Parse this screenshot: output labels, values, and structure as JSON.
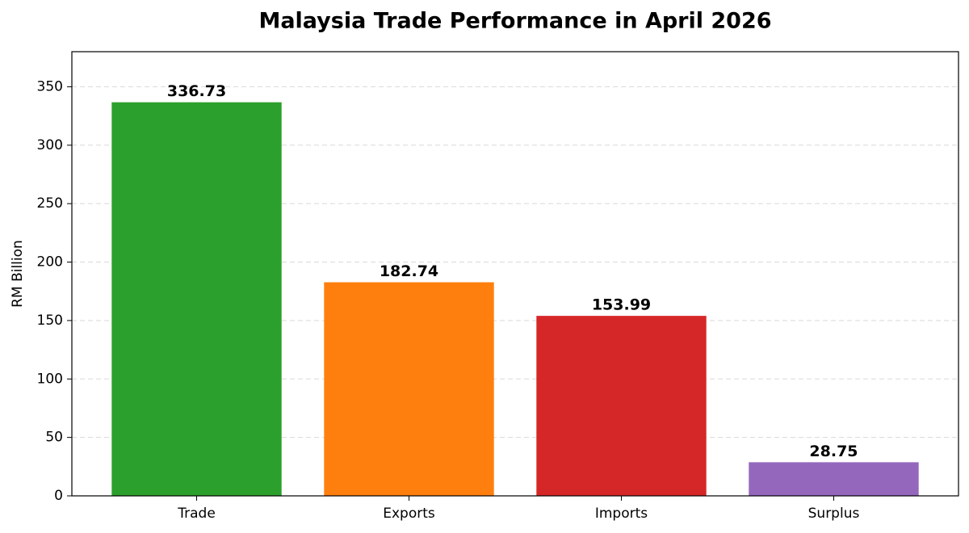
{
  "chart_data": {
    "type": "bar",
    "title": "Malaysia Trade Performance in April 2026",
    "ylabel": "RM Billion",
    "categories": [
      "Trade",
      "Exports",
      "Imports",
      "Surplus"
    ],
    "values": [
      336.73,
      182.74,
      153.99,
      28.75
    ],
    "colors": [
      "#2ca02c",
      "#ff7f0e",
      "#d62728",
      "#9467bd"
    ],
    "ylim": [
      0,
      380
    ],
    "yticks": [
      0,
      50,
      100,
      150,
      200,
      250,
      300,
      350
    ],
    "grid": true
  }
}
